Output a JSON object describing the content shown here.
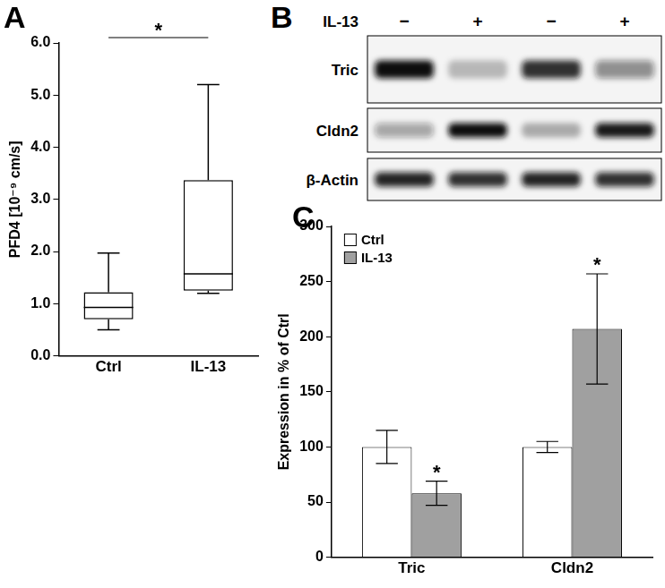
{
  "chart_data": [
    {
      "panel": "A",
      "type": "box",
      "categories": [
        "Ctrl",
        "IL-13"
      ],
      "boxes": [
        {
          "min": 0.5,
          "q1": 0.7,
          "median": 0.93,
          "q3": 1.22,
          "max": 1.97
        },
        {
          "min": 1.2,
          "q1": 1.25,
          "median": 1.57,
          "q3": 3.37,
          "max": 5.2
        }
      ],
      "color": "#ffffff",
      "y_label": "PFD4 [10⁻⁹ cm/s]",
      "ylim": [
        0,
        6
      ],
      "yticks": [
        {
          "value": 0,
          "label": "0.0"
        },
        {
          "value": 1,
          "label": "1.0"
        },
        {
          "value": 2,
          "label": "2.0"
        },
        {
          "value": 3,
          "label": "3.0"
        },
        {
          "value": 4,
          "label": "4.0"
        },
        {
          "value": 5,
          "label": "5.0"
        },
        {
          "value": 6,
          "label": "6.0"
        }
      ],
      "grid": false,
      "annotations": [
        {
          "text": "*",
          "between": [
            "Ctrl",
            "IL-13"
          ]
        }
      ]
    },
    {
      "panel": "C",
      "type": "bar",
      "categories": [
        "Tric",
        "Cldn2"
      ],
      "series": [
        {
          "name": "Ctrl",
          "color": "#ffffff",
          "values": [
            100,
            100
          ],
          "errors": [
            15,
            5
          ]
        },
        {
          "name": "IL-13",
          "color": "#a0a0a0",
          "values": [
            58,
            207
          ],
          "errors": [
            11,
            50
          ]
        }
      ],
      "y_label": "Expression in % of Ctrl",
      "ylim": [
        0,
        300
      ],
      "yticks": [
        0,
        50,
        100,
        150,
        200,
        250,
        300
      ],
      "grid": false,
      "legend": "upper left",
      "annotations": [
        {
          "text": "*",
          "category": "Tric",
          "series": "IL-13"
        },
        {
          "text": "*",
          "category": "Cldn2",
          "series": "IL-13"
        }
      ]
    }
  ],
  "blot": {
    "panel": "B",
    "treatment": "IL-13",
    "lanes": [
      "−",
      "+",
      "−",
      "+"
    ],
    "rows": [
      {
        "label": "Tric",
        "intensity": [
          1.0,
          0.25,
          0.85,
          0.45
        ]
      },
      {
        "label": "Cldn2",
        "intensity": [
          0.35,
          1.0,
          0.3,
          0.95
        ]
      },
      {
        "label": "β-Actin",
        "intensity": [
          0.9,
          0.85,
          0.9,
          0.85
        ]
      }
    ]
  }
}
